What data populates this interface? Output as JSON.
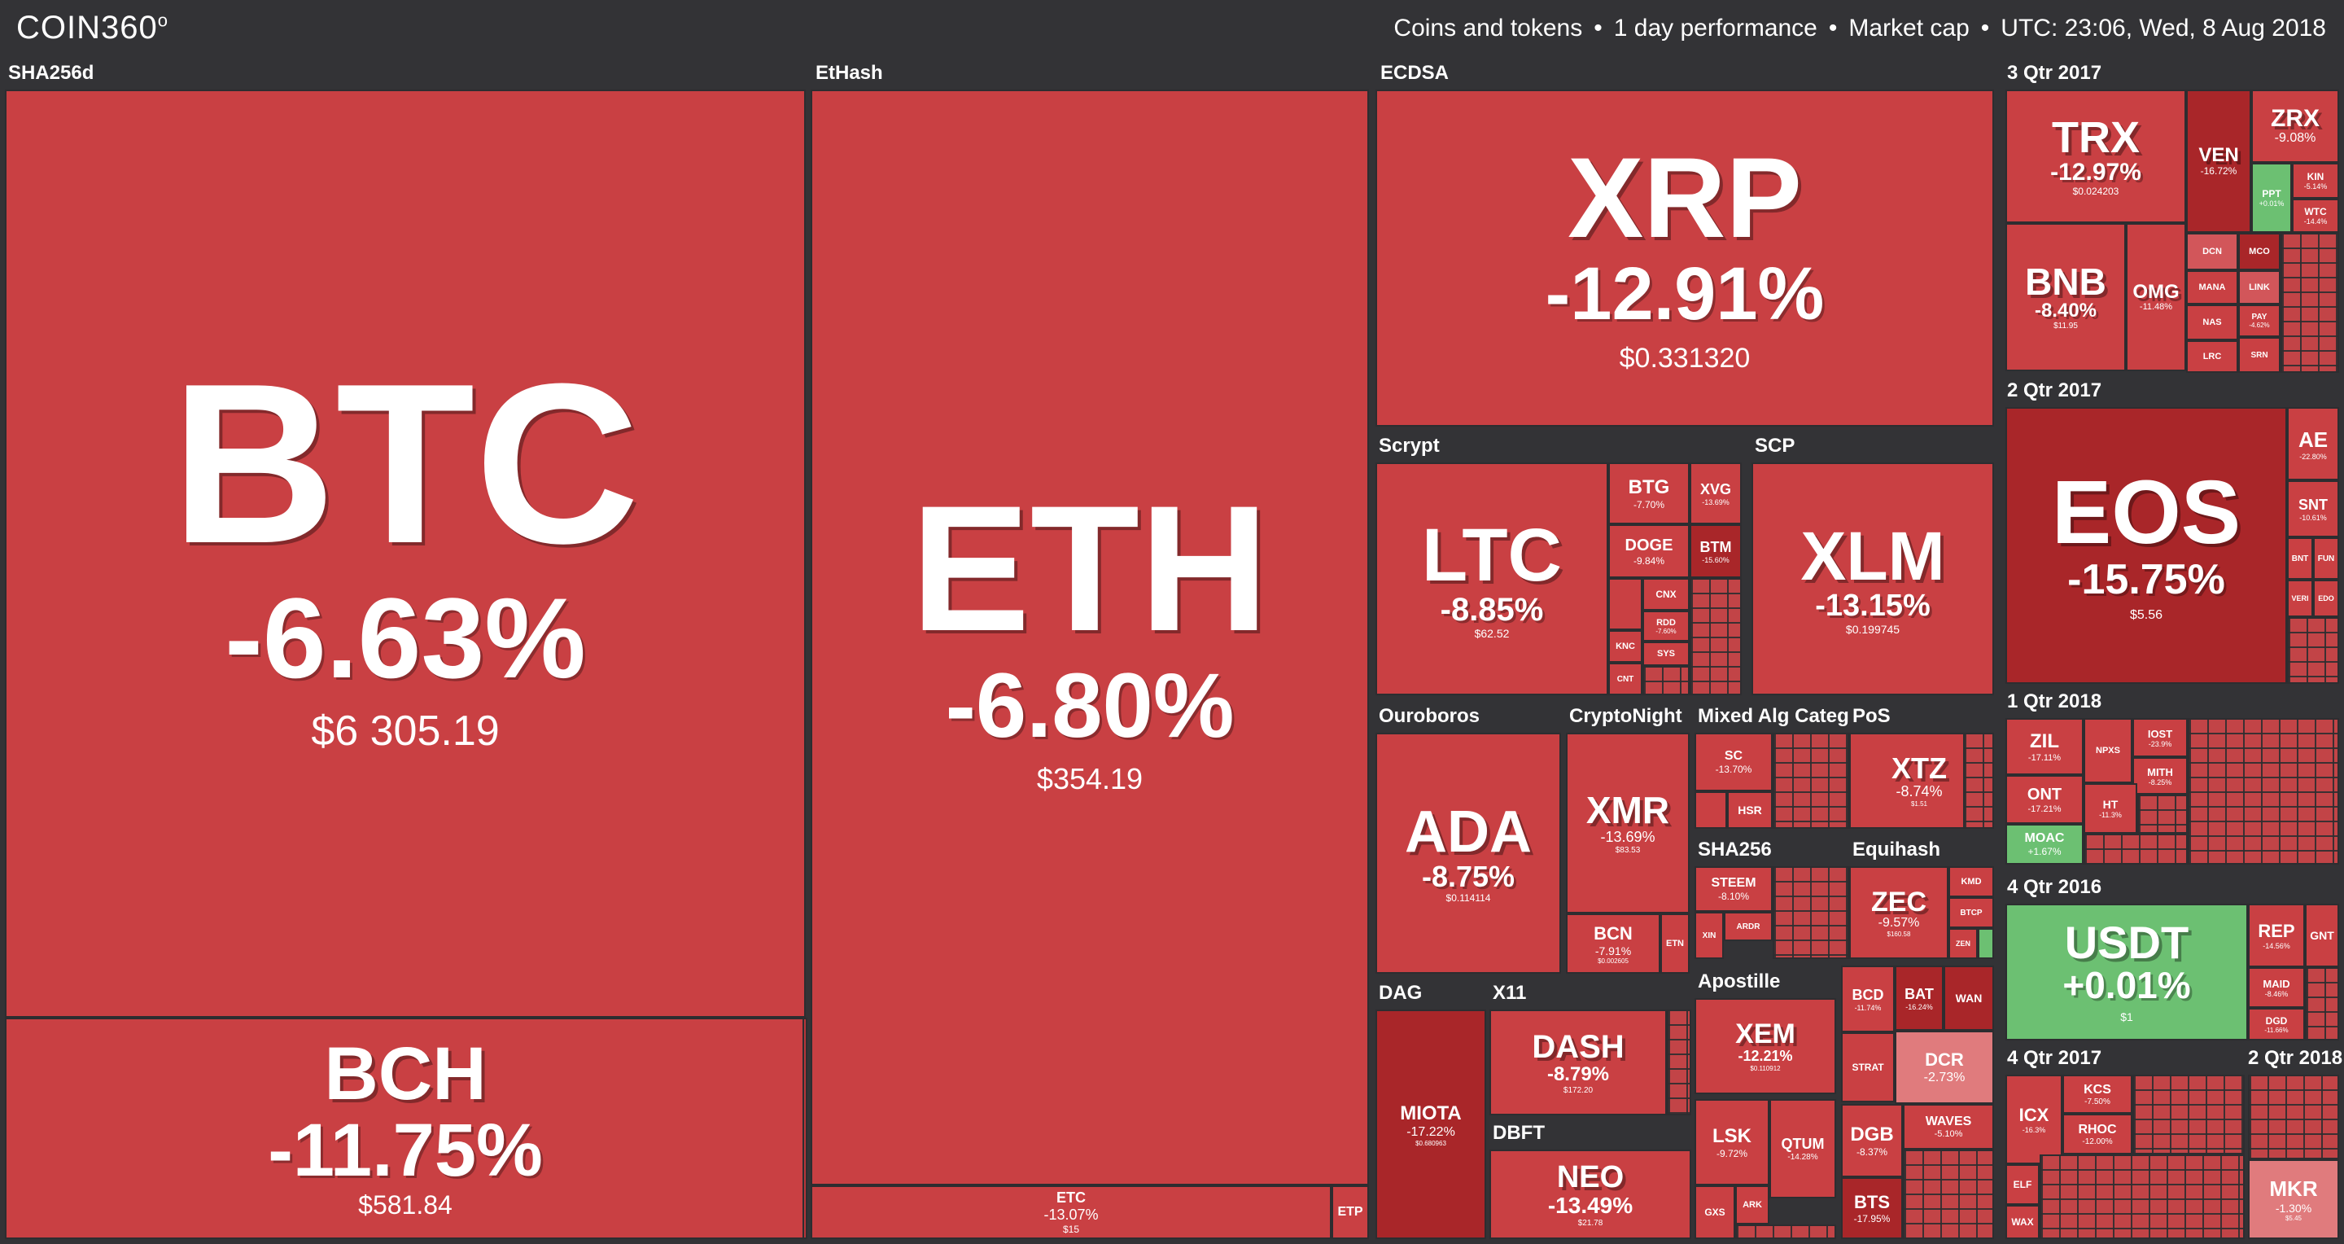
{
  "header": {
    "logo": "COIN360",
    "logo_mark": "o",
    "view": "Coins and tokens",
    "period": "1 day performance",
    "metric": "Market cap",
    "time": "UTC: 23:06, Wed, 8 Aug 2018",
    "separator": "•"
  },
  "groups": {
    "sha256d": "SHA256d",
    "ethash": "EtHash",
    "ecdsa": "ECDSA",
    "q3_2017": "3 Qtr 2017",
    "q2_2017": "2 Qtr 2017",
    "q1_2018": "1 Qtr 2018",
    "q4_2016": "4 Qtr 2016",
    "q4_2017": "4 Qtr 2017",
    "q2_2018": "2 Qtr 2018",
    "scrypt": "Scrypt",
    "scp": "SCP",
    "ouroboros": "Ouroboros",
    "cryptonight": "CryptoNight",
    "mixed": "Mixed Alg Categor",
    "pos": "PoS",
    "sha256": "SHA256",
    "equihash": "Equihash",
    "dag": "DAG",
    "x11": "X11",
    "apostille": "Apostille",
    "dbft": "DBFT"
  },
  "coins": {
    "btc": {
      "sym": "BTC",
      "chg": "-6.63%",
      "price": "$6 305.19"
    },
    "bch": {
      "sym": "BCH",
      "chg": "-11.75%",
      "price": "$581.84"
    },
    "eth": {
      "sym": "ETH",
      "chg": "-6.80%",
      "price": "$354.19"
    },
    "etc": {
      "sym": "ETC",
      "chg": "-13.07%",
      "price": "$15"
    },
    "etp": {
      "sym": "ETP",
      "chg": "",
      "price": ""
    },
    "xrp": {
      "sym": "XRP",
      "chg": "-12.91%",
      "price": "$0.331320"
    },
    "trx": {
      "sym": "TRX",
      "chg": "-12.97%",
      "price": "$0.024203"
    },
    "ven": {
      "sym": "VEN",
      "chg": "-16.72%",
      "price": ""
    },
    "zrx": {
      "sym": "ZRX",
      "chg": "-9.08%",
      "price": ""
    },
    "kin": {
      "sym": "KIN",
      "chg": "-5.14%",
      "price": ""
    },
    "ppt": {
      "sym": "PPT",
      "chg": "+0.01%",
      "price": ""
    },
    "wtc": {
      "sym": "WTC",
      "chg": "-14.4%",
      "price": ""
    },
    "bnb": {
      "sym": "BNB",
      "chg": "-8.40%",
      "price": "$11.95"
    },
    "omg": {
      "sym": "OMG",
      "chg": "-11.48%",
      "price": ""
    },
    "dcn": {
      "sym": "DCN",
      "chg": "",
      "price": ""
    },
    "mco": {
      "sym": "MCO",
      "chg": "",
      "price": ""
    },
    "mana": {
      "sym": "MANA",
      "chg": "",
      "price": ""
    },
    "link": {
      "sym": "LINK",
      "chg": "",
      "price": ""
    },
    "nas": {
      "sym": "NAS",
      "chg": "",
      "price": ""
    },
    "pay": {
      "sym": "PAY",
      "chg": "-4.62%",
      "price": ""
    },
    "lrc": {
      "sym": "LRC",
      "chg": "",
      "price": ""
    },
    "srn": {
      "sym": "SRN",
      "chg": "",
      "price": ""
    },
    "eos": {
      "sym": "EOS",
      "chg": "-15.75%",
      "price": "$5.56"
    },
    "ae": {
      "sym": "AE",
      "chg": "-22.80%",
      "price": ""
    },
    "snt": {
      "sym": "SNT",
      "chg": "-10.61%",
      "price": ""
    },
    "bnt": {
      "sym": "BNT",
      "chg": "",
      "price": ""
    },
    "fun": {
      "sym": "FUN",
      "chg": "",
      "price": ""
    },
    "veri": {
      "sym": "VERI",
      "chg": "",
      "price": ""
    },
    "edo": {
      "sym": "EDO",
      "chg": "",
      "price": ""
    },
    "ltc": {
      "sym": "LTC",
      "chg": "-8.85%",
      "price": "$62.52"
    },
    "btg": {
      "sym": "BTG",
      "chg": "-7.70%",
      "price": ""
    },
    "xvg": {
      "sym": "XVG",
      "chg": "-13.69%",
      "price": ""
    },
    "doge": {
      "sym": "DOGE",
      "chg": "-9.84%",
      "price": ""
    },
    "btm": {
      "sym": "BTM",
      "chg": "-15.60%",
      "price": ""
    },
    "cnx": {
      "sym": "CNX",
      "chg": "",
      "price": ""
    },
    "rdd": {
      "sym": "RDD",
      "chg": "-7.60%",
      "price": ""
    },
    "knc": {
      "sym": "KNC",
      "chg": "",
      "price": ""
    },
    "sys": {
      "sym": "SYS",
      "chg": "",
      "price": ""
    },
    "cnt": {
      "sym": "CNT",
      "chg": "",
      "price": ""
    },
    "xlm": {
      "sym": "XLM",
      "chg": "-13.15%",
      "price": "$0.199745"
    },
    "ada": {
      "sym": "ADA",
      "chg": "-8.75%",
      "price": "$0.114114"
    },
    "xmr": {
      "sym": "XMR",
      "chg": "-13.69%",
      "price": "$83.53"
    },
    "bcn": {
      "sym": "BCN",
      "chg": "-7.91%",
      "price": "$0.002605"
    },
    "etn": {
      "sym": "ETN",
      "chg": "",
      "price": ""
    },
    "sc": {
      "sym": "SC",
      "chg": "-13.70%",
      "price": ""
    },
    "hsr": {
      "sym": "HSR",
      "chg": "",
      "price": ""
    },
    "xtz": {
      "sym": "XTZ",
      "chg": "-8.74%",
      "price": "$1.51"
    },
    "steem": {
      "sym": "STEEM",
      "chg": "-8.10%",
      "price": ""
    },
    "xin": {
      "sym": "XIN",
      "chg": "",
      "price": ""
    },
    "ardr": {
      "sym": "ARDR",
      "chg": "",
      "price": ""
    },
    "zec": {
      "sym": "ZEC",
      "chg": "-9.57%",
      "price": "$160.58"
    },
    "kmd": {
      "sym": "KMD",
      "chg": "",
      "price": ""
    },
    "btcp": {
      "sym": "BTCP",
      "chg": "",
      "price": ""
    },
    "zen": {
      "sym": "ZEN",
      "chg": "",
      "price": ""
    },
    "miota": {
      "sym": "MIOTA",
      "chg": "-17.22%",
      "price": "$0.680963"
    },
    "dash": {
      "sym": "DASH",
      "chg": "-8.79%",
      "price": "$172.20"
    },
    "neo": {
      "sym": "NEO",
      "chg": "-13.49%",
      "price": "$21.78"
    },
    "xem": {
      "sym": "XEM",
      "chg": "-12.21%",
      "price": "$0.110912"
    },
    "lsk": {
      "sym": "LSK",
      "chg": "-9.72%",
      "price": ""
    },
    "qtum": {
      "sym": "QTUM",
      "chg": "-14.28%",
      "price": ""
    },
    "gxs": {
      "sym": "GXS",
      "chg": "",
      "price": ""
    },
    "ark": {
      "sym": "ARK",
      "chg": "",
      "price": ""
    },
    "bcd": {
      "sym": "BCD",
      "chg": "-11.74%",
      "price": ""
    },
    "bat": {
      "sym": "BAT",
      "chg": "-16.24%",
      "price": ""
    },
    "wan": {
      "sym": "WAN",
      "chg": "",
      "price": ""
    },
    "dcr": {
      "sym": "DCR",
      "chg": "-2.73%",
      "price": ""
    },
    "strat": {
      "sym": "STRAT",
      "chg": "",
      "price": ""
    },
    "dgb": {
      "sym": "DGB",
      "chg": "-8.37%",
      "price": ""
    },
    "waves": {
      "sym": "WAVES",
      "chg": "-5.10%",
      "price": ""
    },
    "bts": {
      "sym": "BTS",
      "chg": "-17.95%",
      "price": ""
    },
    "zil": {
      "sym": "ZIL",
      "chg": "-17.11%",
      "price": ""
    },
    "npxs": {
      "sym": "NPXS",
      "chg": "",
      "price": ""
    },
    "iost": {
      "sym": "IOST",
      "chg": "-23.9%",
      "price": ""
    },
    "mith": {
      "sym": "MITH",
      "chg": "-8.25%",
      "price": ""
    },
    "ont": {
      "sym": "ONT",
      "chg": "-17.21%",
      "price": ""
    },
    "ht": {
      "sym": "HT",
      "chg": "-11.3%",
      "price": ""
    },
    "moac": {
      "sym": "MOAC",
      "chg": "+1.67%",
      "price": ""
    },
    "usdt": {
      "sym": "USDT",
      "chg": "+0.01%",
      "price": "$1"
    },
    "rep": {
      "sym": "REP",
      "chg": "-14.56%",
      "price": ""
    },
    "gnt": {
      "sym": "GNT",
      "chg": "",
      "price": ""
    },
    "maid": {
      "sym": "MAID",
      "chg": "-8.46%",
      "price": ""
    },
    "dgd": {
      "sym": "DGD",
      "chg": "-11.66%",
      "price": ""
    },
    "icx": {
      "sym": "ICX",
      "chg": "-16.3%",
      "price": ""
    },
    "kcs": {
      "sym": "KCS",
      "chg": "-7.50%",
      "price": ""
    },
    "rhoc": {
      "sym": "RHOC",
      "chg": "-12.00%",
      "price": ""
    },
    "elf": {
      "sym": "ELF",
      "chg": "",
      "price": ""
    },
    "wax": {
      "sym": "WAX",
      "chg": "",
      "price": ""
    },
    "mkr": {
      "sym": "MKR",
      "chg": "-1.30%",
      "price": "$5.45"
    }
  }
}
